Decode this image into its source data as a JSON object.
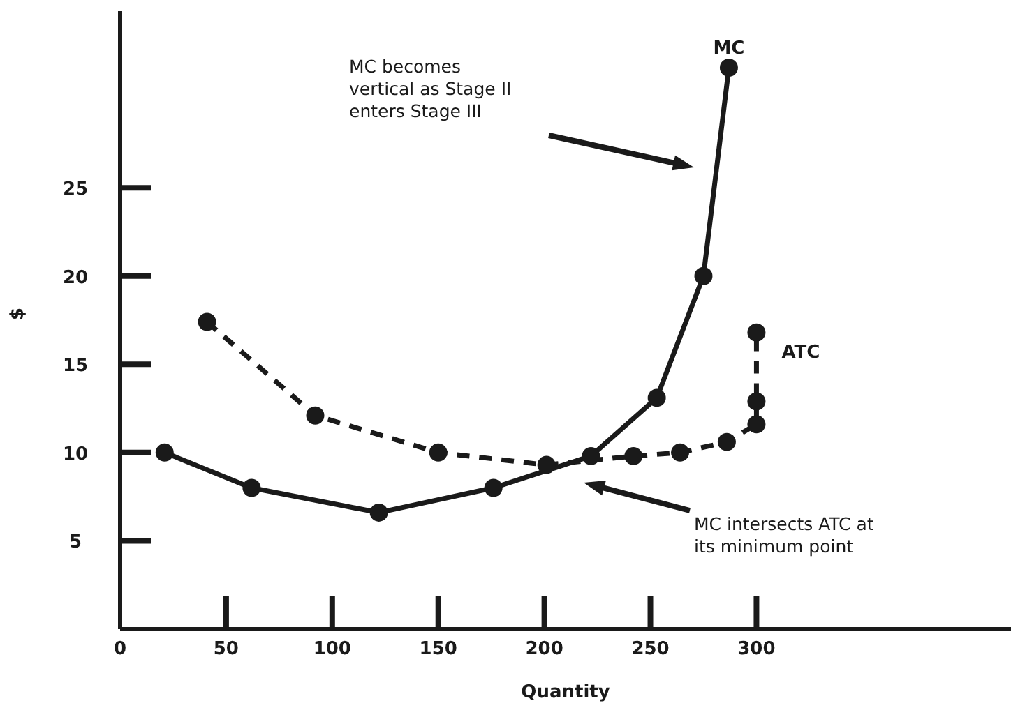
{
  "chart_data": {
    "type": "line",
    "xlabel": "Quantity",
    "ylabel": "$",
    "xlim": [
      0,
      420
    ],
    "xticks": [
      0,
      50,
      100,
      150,
      200,
      250,
      300
    ],
    "ylim": [
      0,
      35
    ],
    "yticks": [
      5,
      10,
      15,
      20,
      25
    ],
    "marker": "circle",
    "series": [
      {
        "name": "MC",
        "color": "#1a1a1a",
        "line_style": "solid",
        "x": [
          21,
          62,
          122,
          176,
          222,
          253,
          275,
          287
        ],
        "values": [
          10,
          8,
          6.6,
          8,
          9.8,
          13.1,
          20,
          31.8
        ]
      },
      {
        "name": "ATC",
        "color": "#1a1a1a",
        "line_style": "dashed",
        "x": [
          41,
          92,
          150,
          201,
          242,
          264,
          286,
          300,
          300,
          300
        ],
        "values": [
          17.4,
          12.1,
          10,
          9.3,
          9.8,
          10,
          10.6,
          11.6,
          12.9,
          16.8
        ]
      }
    ],
    "annotations": [
      "MC becomes vertical as Stage II enters Stage III",
      "MC intersects ATC at its minimum point"
    ]
  }
}
